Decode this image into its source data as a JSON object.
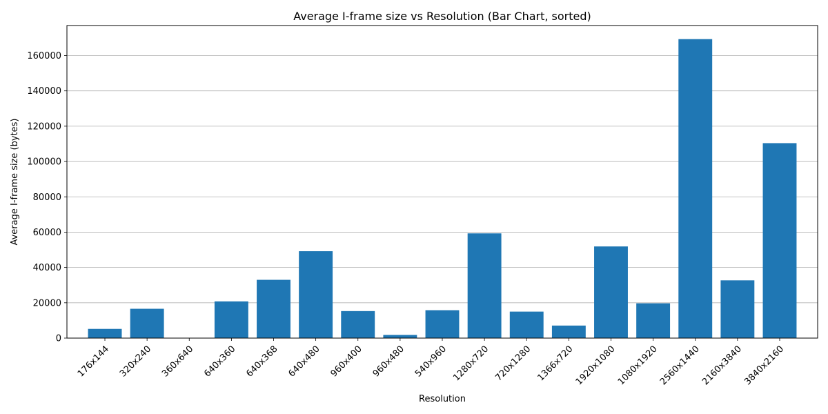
{
  "chart_data": {
    "type": "bar",
    "title": "Average I-frame size vs Resolution (Bar Chart, sorted)",
    "xlabel": "Resolution",
    "ylabel": "Average I-frame size (bytes)",
    "categories": [
      "176x144",
      "320x240",
      "360x640",
      "640x360",
      "640x368",
      "640x480",
      "960x400",
      "960x480",
      "540x960",
      "1280x720",
      "720x1280",
      "1366x720",
      "1920x1080",
      "1080x1920",
      "2560x1440",
      "2160x3840",
      "3840x2160"
    ],
    "values": [
      5200,
      16600,
      0,
      20800,
      33000,
      49200,
      15300,
      1800,
      15800,
      59300,
      15000,
      7100,
      51900,
      19700,
      169300,
      32700,
      110400
    ],
    "ylim": [
      0,
      177000
    ],
    "yticks": [
      0,
      20000,
      40000,
      60000,
      80000,
      100000,
      120000,
      140000,
      160000
    ],
    "ytick_labels": [
      "0",
      "20000",
      "40000",
      "60000",
      "80000",
      "100000",
      "120000",
      "140000",
      "160000"
    ],
    "grid": "y",
    "bar_color": "#1f77b4"
  }
}
